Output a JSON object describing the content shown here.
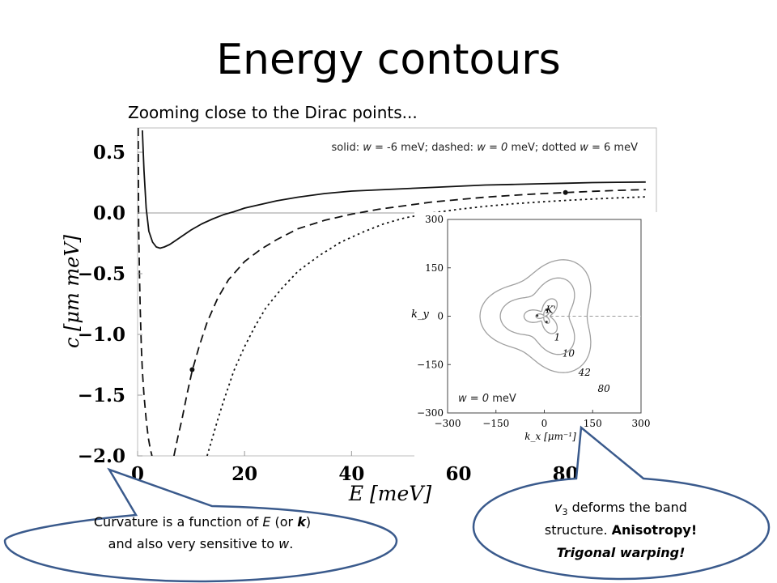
{
  "slide": {
    "title": "Energy contours",
    "subtitle": "Zooming close to the Dirac points..."
  },
  "chart_data": [
    {
      "type": "line",
      "xlabel": "E [meV]",
      "ylabel": "c [μm meV]",
      "xlim": [
        0,
        97
      ],
      "ylim": [
        -2.0,
        0.7
      ],
      "x_ticks": [
        "0",
        "20",
        "40",
        "60",
        "80"
      ],
      "x_tick_values": [
        0,
        20,
        40,
        60,
        80
      ],
      "y_ticks": [
        "0.5",
        "0.0",
        "−0.5",
        "−1.0",
        "−1.5",
        "−2.0"
      ],
      "y_tick_values": [
        0.5,
        0.0,
        -0.5,
        -1.0,
        -1.5,
        -2.0
      ],
      "legend_text": {
        "p1": "solid: ",
        "w1": "w",
        "p2": " = -6 meV; dashed: ",
        "w2": "w = 0",
        "p3": " meV; dotted ",
        "w3": "w",
        "p4": " = 6 meV"
      },
      "series": [
        {
          "style": "solid",
          "x": [
            0.9,
            1.2,
            1.6,
            2.1,
            2.8,
            3.5,
            4.2,
            5.0,
            6.0,
            7.0,
            8.0,
            9.0,
            10,
            12,
            14,
            16,
            18,
            20,
            23,
            26,
            30,
            35,
            40,
            45,
            50,
            55,
            60,
            65,
            70,
            75,
            80,
            85,
            90,
            95
          ],
          "y": [
            0.68,
            0.35,
            0.04,
            -0.15,
            -0.24,
            -0.28,
            -0.29,
            -0.28,
            -0.26,
            -0.23,
            -0.2,
            -0.17,
            -0.14,
            -0.09,
            -0.05,
            -0.015,
            0.01,
            0.04,
            0.07,
            0.1,
            0.13,
            0.16,
            0.18,
            0.19,
            0.2,
            0.21,
            0.22,
            0.23,
            0.235,
            0.24,
            0.245,
            0.25,
            0.253,
            0.255
          ]
        },
        {
          "style": "dashed",
          "x_branch1": [
            0.1,
            0.2,
            0.35,
            0.5,
            0.7,
            0.9,
            1.2,
            1.6,
            2.0,
            2.4,
            2.7
          ],
          "y_branch1": [
            0.7,
            -0.1,
            -0.5,
            -0.8,
            -1.1,
            -1.3,
            -1.5,
            -1.7,
            -1.85,
            -1.95,
            -2.0
          ],
          "x": [
            6.8,
            7.5,
            8.3,
            9.2,
            10.2,
            11.5,
            13,
            15,
            17,
            20,
            23,
            26,
            30,
            35,
            40,
            45,
            50,
            55,
            60,
            65,
            70,
            75,
            80,
            85,
            90,
            95
          ],
          "y": [
            -2.0,
            -1.85,
            -1.7,
            -1.5,
            -1.3,
            -1.1,
            -0.9,
            -0.7,
            -0.55,
            -0.4,
            -0.3,
            -0.22,
            -0.13,
            -0.06,
            -0.01,
            0.03,
            0.06,
            0.09,
            0.11,
            0.13,
            0.145,
            0.158,
            0.168,
            0.178,
            0.186,
            0.193
          ]
        },
        {
          "style": "dotted",
          "x": [
            13,
            14,
            15,
            16,
            17,
            18,
            20,
            22,
            24,
            27,
            30,
            34,
            38,
            42,
            46,
            50,
            55,
            60,
            65,
            70,
            75,
            80,
            85,
            90,
            95
          ],
          "y": [
            -2.0,
            -1.85,
            -1.7,
            -1.56,
            -1.43,
            -1.3,
            -1.1,
            -0.93,
            -0.78,
            -0.62,
            -0.48,
            -0.35,
            -0.24,
            -0.16,
            -0.09,
            -0.04,
            0.0,
            0.03,
            0.055,
            0.075,
            0.09,
            0.103,
            0.115,
            0.125,
            0.133
          ]
        }
      ],
      "markers": [
        {
          "x": 10.2,
          "y": -1.29
        },
        {
          "x": 80.0,
          "y": 0.168
        }
      ]
    },
    {
      "type": "line",
      "inset": true,
      "xlabel": "k_x [μm⁻¹]",
      "ylabel": "k_y",
      "xlim": [
        -300,
        300
      ],
      "ylim": [
        -300,
        300
      ],
      "x_ticks": [
        "−300",
        "−150",
        "0",
        "150",
        "300"
      ],
      "x_tick_values": [
        -300,
        -150,
        0,
        150,
        300
      ],
      "y_ticks": [
        "300",
        "150",
        "0",
        "−150",
        "−300"
      ],
      "y_tick_values": [
        300,
        150,
        0,
        -150,
        -300
      ],
      "annotation": {
        "w": "w = 0",
        "unit": " meV"
      },
      "center_label": "K'",
      "contours": [
        {
          "label": "1",
          "label_x": 40,
          "label_y": -75,
          "radius": 25,
          "warp": 0.8
        },
        {
          "label": "10",
          "label_x": 75,
          "label_y": -125,
          "radius": 60,
          "warp": 0.55
        },
        {
          "label": "42",
          "label_x": 125,
          "label_y": -185,
          "radius": 130,
          "warp": 0.28
        },
        {
          "label": "80",
          "label_x": 185,
          "label_y": -235,
          "radius": 190,
          "warp": 0.2
        }
      ]
    }
  ],
  "callouts": {
    "left": {
      "line1": "Curvature is a function of ",
      "E": "E",
      "mid": " (or ",
      "k": "k",
      "end1": ")",
      "line2a": "and also very sensitive to ",
      "w": "w",
      "line2b": "."
    },
    "right": {
      "v": "v",
      "sub": "3",
      "line1": " deforms the band",
      "line2a": "structure. ",
      "bold": "Anisotropy!",
      "line3": "Trigonal warping!"
    }
  },
  "colors": {
    "callout_stroke": "#3a5a8c",
    "inset_contour": "#a0a0a0",
    "axis_gray": "#888888"
  }
}
